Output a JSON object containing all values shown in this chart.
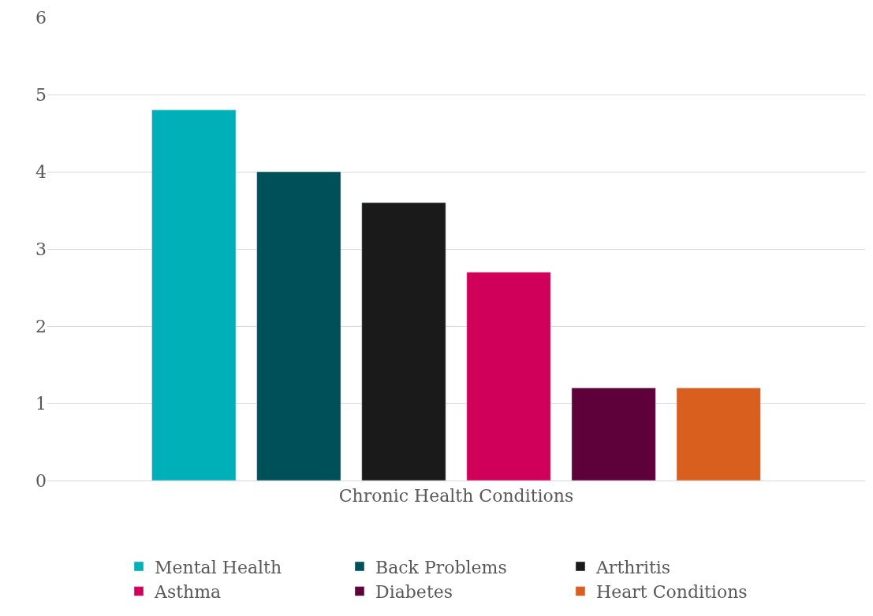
{
  "chart_data": {
    "type": "bar",
    "categories": [
      "Chronic Health Conditions"
    ],
    "series": [
      {
        "name": "Mental Health",
        "color": "#00b0b9",
        "values": [
          4.8
        ]
      },
      {
        "name": "Back Problems",
        "color": "#00505a",
        "values": [
          4.0
        ]
      },
      {
        "name": "Arthritis",
        "color": "#1a1a1a",
        "values": [
          3.6
        ]
      },
      {
        "name": "Asthma",
        "color": "#d0005a",
        "values": [
          2.7
        ]
      },
      {
        "name": "Diabetes",
        "color": "#5e0039",
        "values": [
          1.2
        ]
      },
      {
        "name": "Heart Conditions",
        "color": "#d95f1e",
        "values": [
          1.2
        ]
      }
    ],
    "ylim": [
      0,
      6
    ],
    "yticks": [
      0,
      1,
      2,
      3,
      4,
      5,
      6
    ],
    "grid": "y",
    "legend": "bottom"
  }
}
